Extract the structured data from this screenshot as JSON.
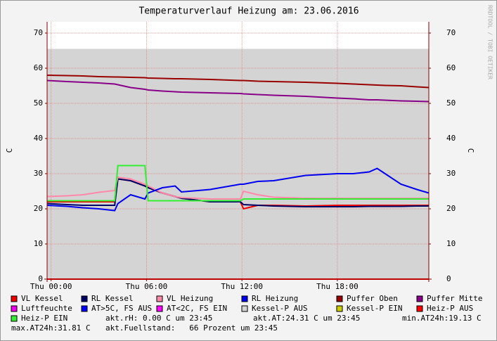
{
  "chart_data": {
    "type": "line",
    "title": "Temperaturverlauf Heizung am: 23.06.2016",
    "y_label": "C",
    "y2_label": "C",
    "watermark": "RRDTOOL / TOBI OETIKER",
    "x": [
      -0.25,
      1,
      2,
      3,
      4,
      4.2,
      5,
      5.9,
      6.1,
      7,
      7.8,
      8.2,
      10,
      11.9,
      12.1,
      13,
      14,
      16,
      18,
      19,
      20,
      20.5,
      21,
      22,
      23,
      23.75
    ],
    "xlim": [
      -0.25,
      23.75
    ],
    "xticks": [
      {
        "value": 0,
        "label": "Thu 00:00"
      },
      {
        "value": 6,
        "label": "Thu 06:00"
      },
      {
        "value": 12,
        "label": "Thu 12:00"
      },
      {
        "value": 18,
        "label": "Thu 18:00"
      }
    ],
    "ylim": [
      0,
      73.2
    ],
    "yticks": [
      0,
      10,
      20,
      30,
      40,
      50,
      60,
      70
    ],
    "y2lim": [
      0,
      73.2
    ],
    "y2ticks": [
      0,
      10,
      20,
      30,
      40,
      50,
      60,
      70
    ],
    "grid": true,
    "series": [
      {
        "name": "VL Kessel",
        "color": "#ee0000",
        "values": [
          22,
          22,
          22,
          22,
          22,
          28.5,
          28,
          26.5,
          26,
          24.5,
          23.5,
          23,
          22,
          22,
          20,
          21,
          21,
          20.8,
          21,
          21,
          21,
          21,
          21,
          21,
          21,
          21
        ]
      },
      {
        "name": "RL Kessel",
        "color": "#000066",
        "values": [
          21.5,
          21.2,
          21,
          21,
          21,
          28.5,
          28,
          26.5,
          26,
          24.5,
          23.5,
          23,
          22,
          22,
          21.2,
          21,
          20.8,
          20.6,
          20.6,
          20.6,
          20.7,
          20.7,
          20.7,
          20.7,
          20.8,
          20.8
        ]
      },
      {
        "name": "VL Heizung",
        "color": "#ff88aa",
        "values": [
          23.5,
          23.7,
          24,
          24.7,
          25.2,
          29,
          28.5,
          27,
          26.5,
          24.5,
          23.5,
          23.2,
          22.8,
          22.8,
          25,
          24,
          23.3,
          23,
          23,
          23,
          23,
          23,
          23,
          23,
          23,
          23
        ]
      },
      {
        "name": "RL Heizung",
        "color": "#0000ee",
        "values": [
          21,
          20.7,
          20.3,
          20,
          19.5,
          21.5,
          24,
          22.8,
          24.5,
          26,
          26.5,
          24.8,
          25.5,
          27,
          27,
          27.8,
          28,
          29.5,
          30,
          30,
          30.5,
          31.5,
          30,
          27,
          25.5,
          24.5
        ]
      },
      {
        "name": "Puffer Oben",
        "color": "#990000",
        "values": [
          58,
          57.9,
          57.8,
          57.6,
          57.5,
          57.5,
          57.4,
          57.3,
          57.2,
          57.1,
          57,
          57,
          56.8,
          56.5,
          56.5,
          56.3,
          56.2,
          56,
          55.7,
          55.5,
          55.3,
          55.2,
          55.1,
          55,
          54.7,
          54.5
        ]
      },
      {
        "name": "Puffer Mitte",
        "color": "#880088",
        "values": [
          56.5,
          56.2,
          56,
          55.8,
          55.5,
          55.3,
          54.5,
          54,
          53.8,
          53.5,
          53.3,
          53.2,
          53,
          52.8,
          52.7,
          52.5,
          52.3,
          52,
          51.5,
          51.3,
          51,
          51,
          50.9,
          50.7,
          50.6,
          50.5
        ]
      },
      {
        "name": "Luftfeuchte",
        "color": "#ee00ee",
        "values": [
          0,
          0,
          0,
          0,
          0,
          0,
          0,
          0,
          0,
          0,
          0,
          0,
          0,
          0,
          0,
          0,
          0,
          0,
          0,
          0,
          0,
          0,
          0,
          0,
          0,
          0
        ]
      },
      {
        "name": "AT>5C, FS AUS",
        "color": "#0000ff",
        "values": [
          0,
          0,
          0,
          0,
          0,
          0,
          0,
          0,
          0,
          0,
          0,
          0,
          0,
          0,
          0,
          0,
          0,
          0,
          0,
          0,
          0,
          0,
          0,
          0,
          0,
          0
        ]
      },
      {
        "name": "AT<2C, FS EIN",
        "color": "#ff00ff",
        "values": [
          0,
          0,
          0,
          0,
          0,
          0,
          0,
          0,
          0,
          0,
          0,
          0,
          0,
          0,
          0,
          0,
          0,
          0,
          0,
          0,
          0,
          0,
          0,
          0,
          0,
          0
        ]
      },
      {
        "name": "Kessel-P AUS",
        "color": "#d4d4d4",
        "style": "area",
        "values": [
          65.5,
          65.5,
          65.5,
          65.5,
          65.5,
          65.5,
          65.5,
          65.5,
          65.5,
          65.5,
          65.5,
          65.5,
          65.5,
          65.5,
          65.5,
          65.5,
          65.5,
          65.5,
          65.5,
          65.5,
          65.5,
          65.5,
          65.5,
          65.5,
          65.5,
          65.5
        ]
      },
      {
        "name": "Kessel-P EIN",
        "color": "#cccc00",
        "values": [
          0,
          0,
          0,
          0,
          0,
          0,
          0,
          0,
          0,
          0,
          0,
          0,
          0,
          0,
          0,
          0,
          0,
          0,
          0,
          0,
          0,
          0,
          0,
          0,
          0,
          0
        ]
      },
      {
        "name": "Heiz-P AUS",
        "color": "#ff0000",
        "values": [
          0,
          0,
          0,
          0,
          0,
          0,
          0,
          0,
          0,
          0,
          0,
          0,
          0,
          0,
          0,
          0,
          0,
          0,
          0,
          0,
          0,
          0,
          0,
          0,
          0,
          0
        ]
      },
      {
        "name": "Heiz-P EIN",
        "color": "#33ee33",
        "values": [
          22.3,
          22.3,
          22.3,
          22.3,
          22.3,
          32.3,
          32.3,
          32.3,
          22.3,
          22.3,
          22.3,
          22.3,
          22.3,
          22.3,
          22.8,
          22.8,
          22.8,
          22.8,
          22.8,
          22.8,
          22.8,
          22.8,
          22.8,
          22.8,
          22.8,
          22.8
        ]
      }
    ],
    "notes": [
      "akt.rH: 0.00 C um 23:45",
      "akt.AT:24.31 C um 23:45",
      "min.AT24h:19.13 C",
      "max.AT24h:31.81 C",
      "akt.Fuellstand:   66 Prozent um 23:45"
    ]
  }
}
